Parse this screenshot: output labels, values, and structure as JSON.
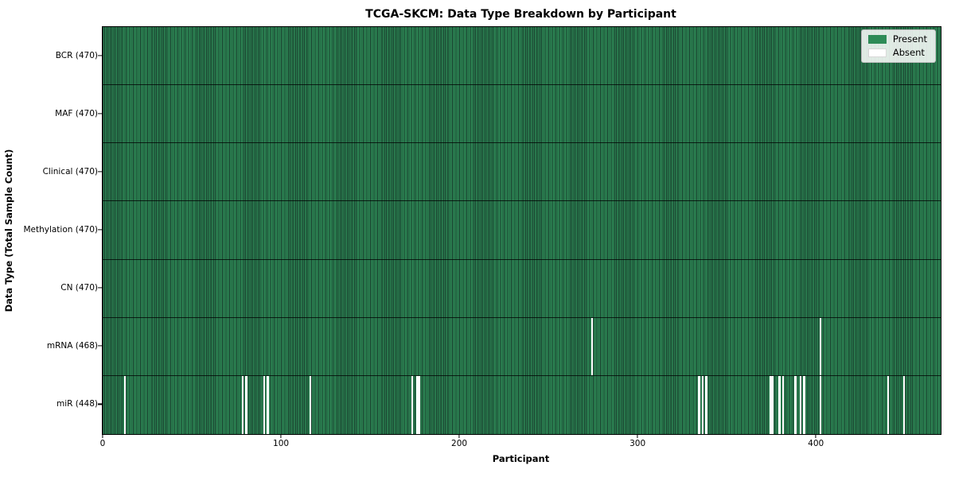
{
  "title": "TCGA-SKCM: Data Type Breakdown by Participant",
  "chart_data": {
    "type": "heatmap",
    "title": "TCGA-SKCM: Data Type Breakdown by Participant",
    "xlabel": "Participant",
    "ylabel": "Data Type (Total Sample Count)",
    "n_participants": 470,
    "x_ticks": [
      0,
      100,
      200,
      300,
      400
    ],
    "grid": "row separators only",
    "legend_position": "upper right",
    "legend": [
      {
        "label": "Present",
        "color": "#2e8b57"
      },
      {
        "label": "Absent",
        "color": "#ffffff"
      }
    ],
    "colors": {
      "present": "#2e8b57",
      "present_edge": "#17382a",
      "absent": "#ffffff",
      "row_separator": "#1a241c"
    },
    "rows": [
      {
        "label": "BCR (470)",
        "data_type": "BCR",
        "total": 470,
        "missing_participants": []
      },
      {
        "label": "MAF (470)",
        "data_type": "MAF",
        "total": 470,
        "missing_participants": []
      },
      {
        "label": "Clinical (470)",
        "data_type": "Clinical",
        "total": 470,
        "missing_participants": []
      },
      {
        "label": "Methylation (470)",
        "data_type": "Methylation",
        "total": 470,
        "missing_participants": []
      },
      {
        "label": "CN (470)",
        "data_type": "CN",
        "total": 470,
        "missing_participants": []
      },
      {
        "label": "mRNA (468)",
        "data_type": "mRNA",
        "total": 468,
        "missing_participants": [
          274,
          402
        ]
      },
      {
        "label": "miR (448)",
        "data_type": "miR",
        "total": 448,
        "missing_participants": [
          12,
          78,
          80,
          90,
          92,
          116,
          173,
          176,
          177,
          334,
          336,
          338,
          374,
          375,
          379,
          381,
          388,
          391,
          393,
          402,
          440,
          449
        ]
      }
    ]
  }
}
